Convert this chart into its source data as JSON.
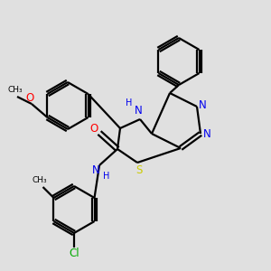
{
  "background_color": "#e0e0e0",
  "bond_color": "#000000",
  "atom_colors": {
    "N": "#0000ee",
    "O": "#ff0000",
    "S": "#cccc00",
    "Cl": "#00aa00",
    "C": "#000000",
    "H": "#0000ee"
  },
  "figsize": [
    3.0,
    3.0
  ],
  "dpi": 100
}
